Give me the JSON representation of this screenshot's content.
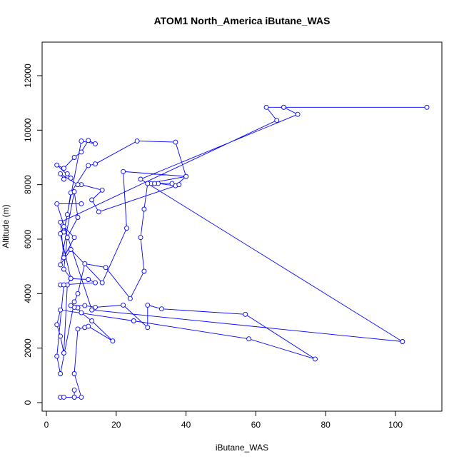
{
  "chart_data": {
    "type": "line",
    "title": "ATOM1 North_America iButane_WAS",
    "xlabel": "iButane_WAS",
    "ylabel": "Altitude (m)",
    "xlim": [
      0,
      110
    ],
    "ylim": [
      0,
      13000
    ],
    "x_ticks": [
      0,
      20,
      40,
      60,
      80,
      100
    ],
    "y_ticks": [
      0,
      2000,
      4000,
      6000,
      8000,
      10000,
      12000
    ],
    "grid": false,
    "legend": "none",
    "color": "#0000ff",
    "marker": "open-circle",
    "series": [
      {
        "x": [
          4,
          5,
          8,
          8,
          8,
          10,
          8,
          9,
          11,
          11,
          12,
          19,
          13,
          10,
          9,
          8,
          7,
          11,
          14,
          22,
          29,
          29,
          33,
          57,
          77,
          58,
          25,
          4,
          3,
          4,
          5,
          6,
          7,
          12,
          14,
          4,
          5,
          3,
          4,
          8,
          9,
          11,
          17,
          24,
          28,
          27,
          28,
          29,
          40,
          37,
          32,
          30,
          31,
          29,
          36,
          38,
          15,
          13,
          16,
          10,
          9,
          4,
          5,
          6,
          7,
          3,
          5,
          8,
          10,
          12,
          14,
          10,
          5,
          6,
          7,
          12,
          14,
          26,
          37,
          40,
          22,
          23,
          16,
          7,
          4,
          8,
          9,
          6,
          5,
          7,
          4,
          5,
          8,
          5,
          4,
          66,
          63,
          68,
          109,
          68,
          72,
          27,
          102,
          13,
          3,
          10
        ],
        "y": [
          200,
          200,
          200,
          460,
          200,
          200,
          1060,
          2700,
          2760,
          2760,
          2800,
          2260,
          3000,
          3300,
          3480,
          3500,
          3560,
          3560,
          3500,
          3580,
          2760,
          3580,
          3440,
          3240,
          1600,
          2340,
          3000,
          3400,
          2860,
          2440,
          1820,
          4320,
          4550,
          4520,
          4400,
          4320,
          4320,
          1700,
          1060,
          3700,
          4000,
          5100,
          4960,
          3820,
          4820,
          6060,
          7100,
          8040,
          8300,
          7960,
          8040,
          8040,
          8040,
          8040,
          8040,
          8000,
          7000,
          7440,
          7800,
          8000,
          8000,
          8400,
          8200,
          8400,
          8240,
          8720,
          8600,
          9000,
          9200,
          9620,
          9500,
          9600,
          6260,
          6900,
          7700,
          8700,
          8760,
          9600,
          9560,
          8300,
          8480,
          6400,
          4400,
          5620,
          5060,
          7740,
          6800,
          6060,
          4900,
          4560,
          6200,
          6460,
          6060,
          5320,
          6620,
          10360,
          10840,
          10840,
          10840,
          10840,
          10580,
          8200,
          2240,
          3400,
          7300,
          7300
        ]
      }
    ]
  }
}
